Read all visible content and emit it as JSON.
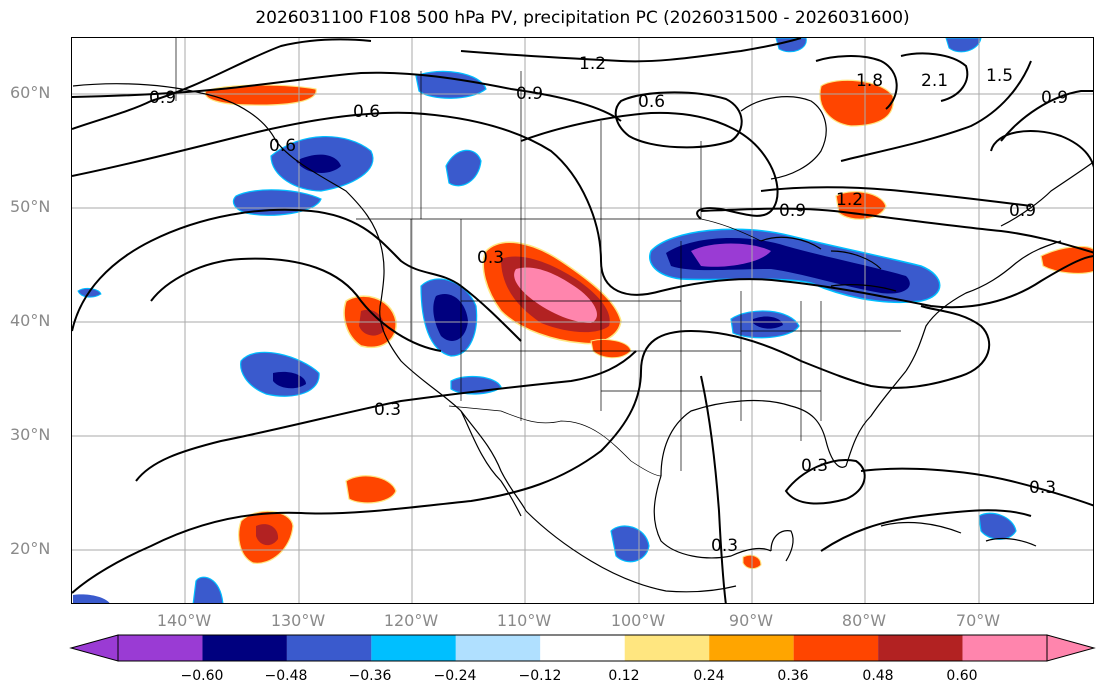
{
  "title": "2026031100 F108 500 hPa PV, precipitation PC (2026031500 - 2026031600)",
  "latitude_labels": [
    "60°N",
    "50°N",
    "40°N",
    "30°N",
    "20°N"
  ],
  "longitude_labels": [
    "140°W",
    "130°W",
    "120°W",
    "110°W",
    "100°W",
    "90°W",
    "80°W",
    "70°W"
  ],
  "contour_labels": [
    "0.9",
    "0.6",
    "1.2",
    "0.9",
    "0.6",
    "2.1",
    "1.8",
    "1.5",
    "0.9",
    "0.9",
    "1.2",
    "0.9",
    "0.3",
    "0.3",
    "0.3",
    "0.3",
    "0.3",
    "0.6"
  ],
  "colorbar": {
    "ticks": [
      "−0.60",
      "−0.48",
      "−0.36",
      "−0.24",
      "−0.12",
      "0.12",
      "0.24",
      "0.36",
      "0.48",
      "0.60"
    ],
    "colors": [
      "#9a3bd4",
      "#00007f",
      "#3a5acd",
      "#00bfff",
      "#b0e0ff",
      "#ffffff",
      "#ffe680",
      "#ffa500",
      "#ff4500",
      "#b22222",
      "#ff85ad",
      "#ff85ad"
    ]
  }
}
